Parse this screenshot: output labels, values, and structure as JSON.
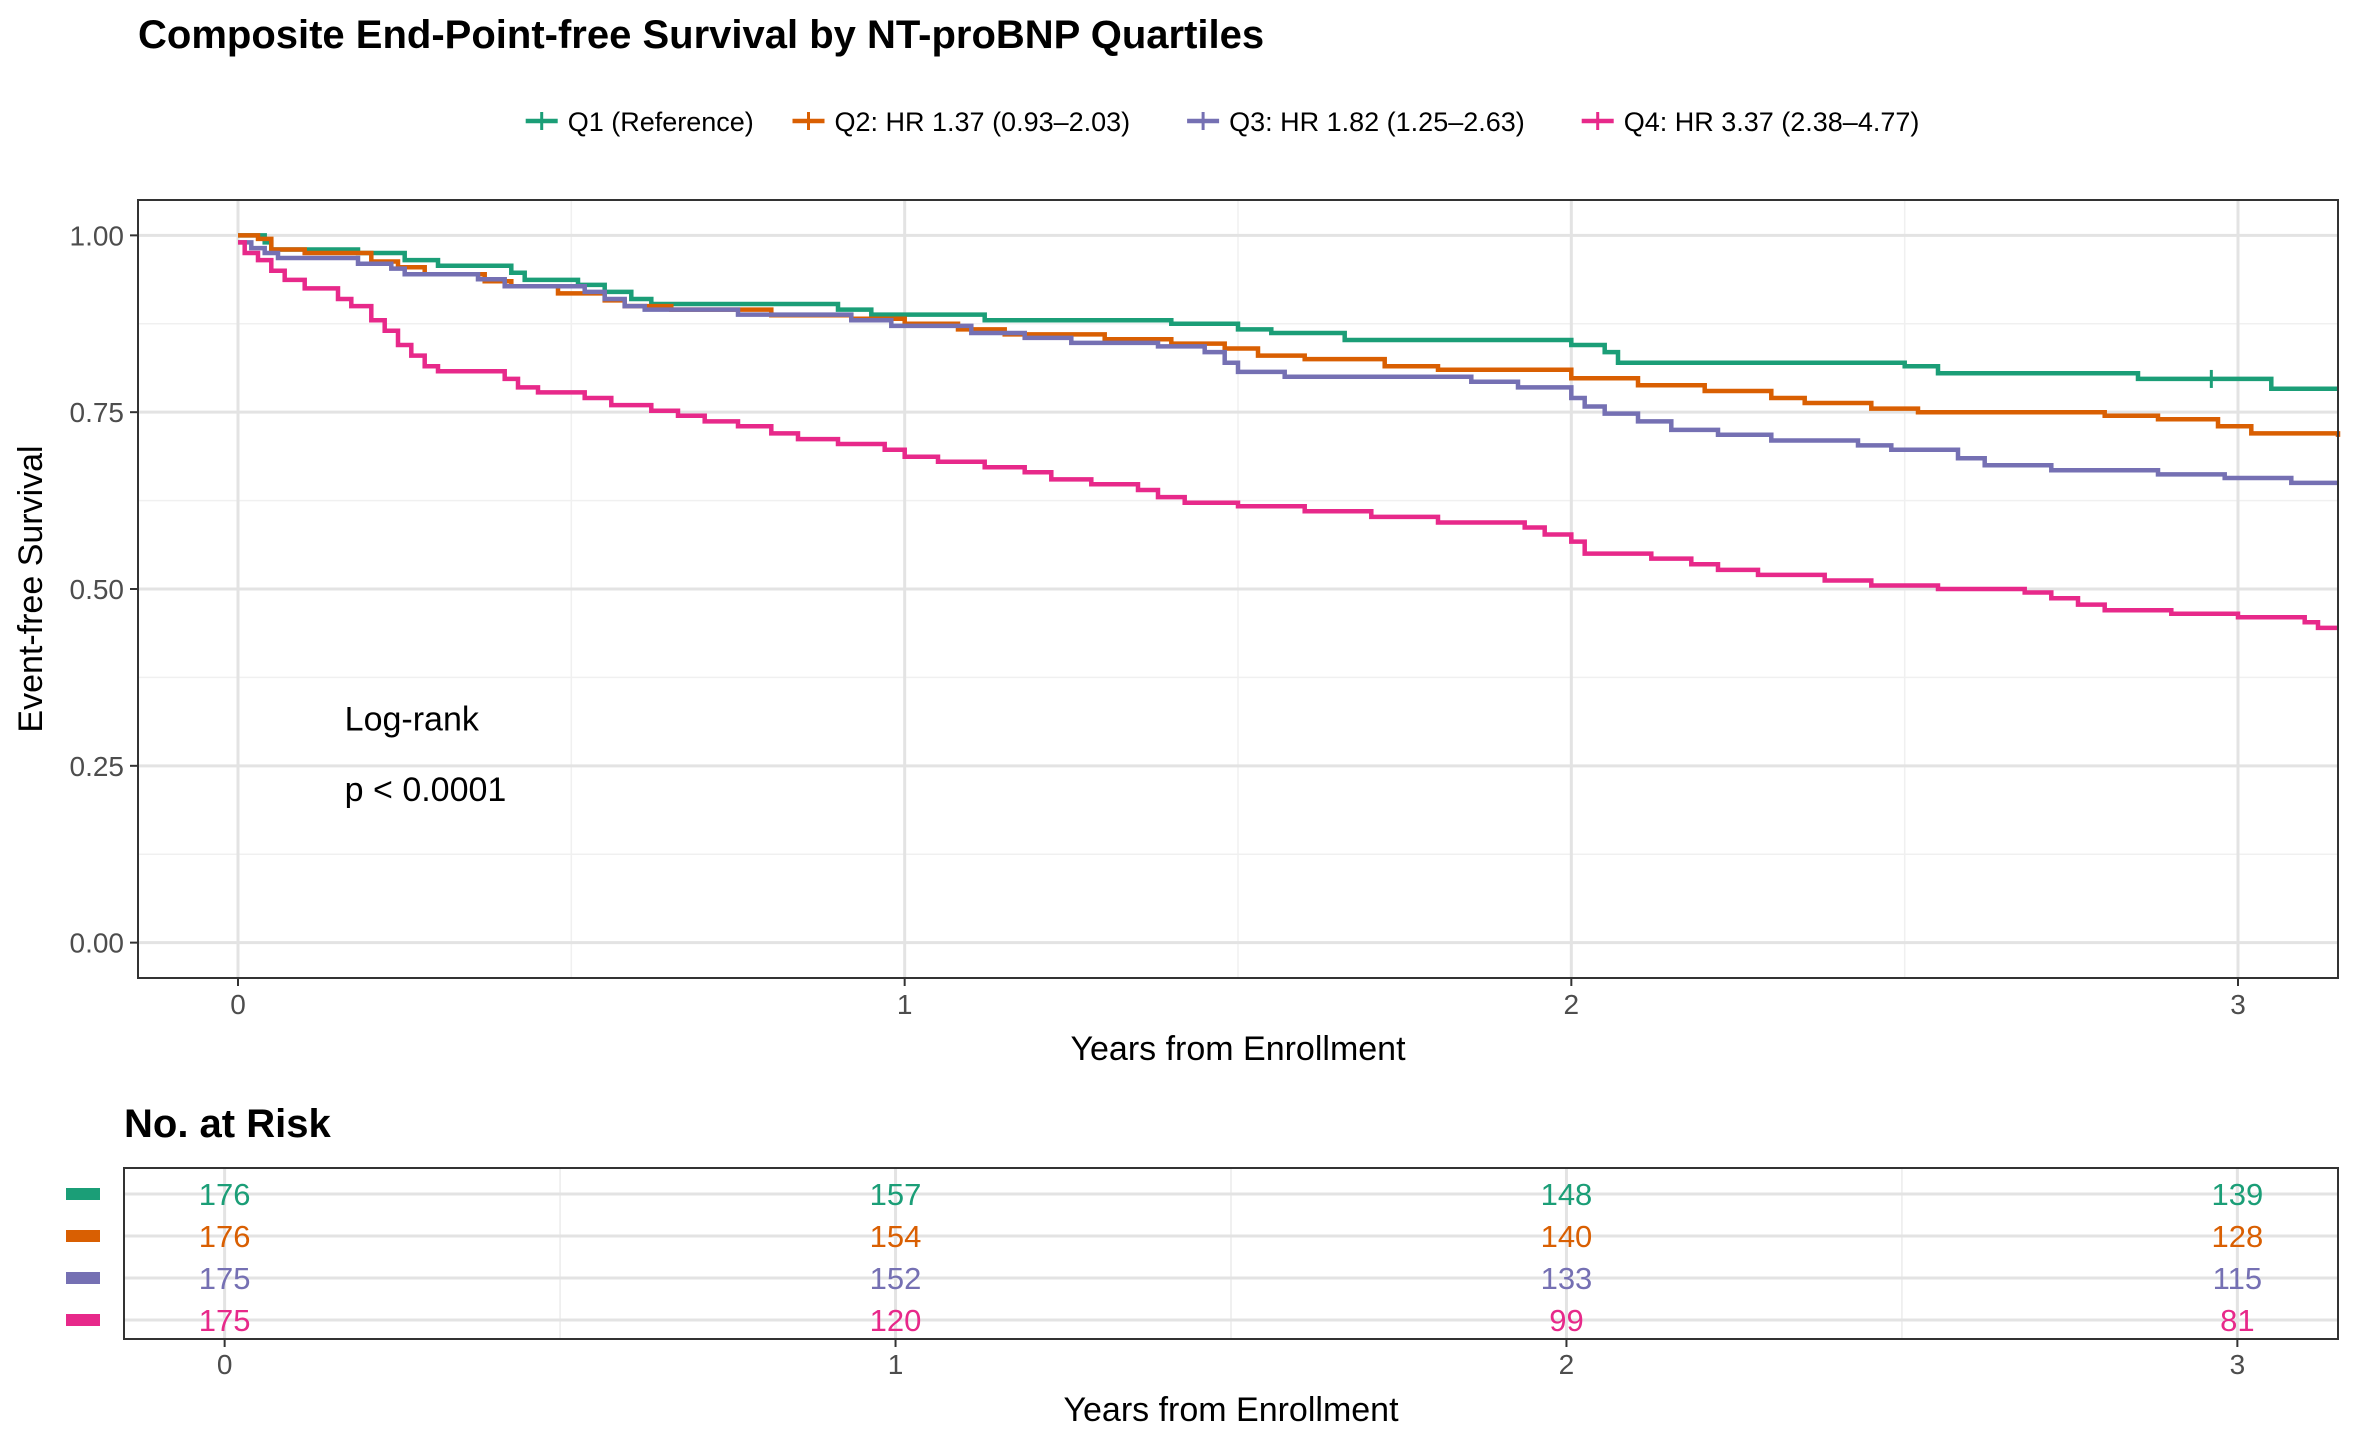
{
  "chart_data": {
    "type": "line",
    "title": "Composite End-Point-free Survival by NT-proBNP Quartiles",
    "xlabel": "Years from Enrollment",
    "ylabel": "Event-free Survival",
    "xlim": [
      -0.15,
      3.15
    ],
    "ylim": [
      -0.05,
      1.05
    ],
    "x_ticks": [
      0,
      1,
      2,
      3
    ],
    "x_tick_labels": [
      "0",
      "1",
      "2",
      "3"
    ],
    "y_ticks": [
      0,
      0.25,
      0.5,
      0.75,
      1.0
    ],
    "y_tick_labels": [
      "0.00",
      "0.25",
      "0.50",
      "0.75",
      "1.00"
    ],
    "grid": true,
    "legend_position": "top",
    "annotation": {
      "line1": "Log-rank",
      "line2": "p < 0.0001",
      "x": 0.16,
      "y1": 0.3,
      "y2": 0.2
    },
    "series": [
      {
        "name": "Q1 (Reference)",
        "color": "#1B9E77",
        "censor_marks": [
          [
            2.96,
            0.797
          ]
        ],
        "points": [
          [
            0,
            1.0
          ],
          [
            0.04,
            0.99
          ],
          [
            0.05,
            0.98
          ],
          [
            0.18,
            0.975
          ],
          [
            0.25,
            0.965
          ],
          [
            0.3,
            0.957
          ],
          [
            0.41,
            0.947
          ],
          [
            0.43,
            0.937
          ],
          [
            0.51,
            0.93
          ],
          [
            0.55,
            0.92
          ],
          [
            0.59,
            0.91
          ],
          [
            0.62,
            0.903
          ],
          [
            0.9,
            0.895
          ],
          [
            0.95,
            0.888
          ],
          [
            1.12,
            0.88
          ],
          [
            1.4,
            0.875
          ],
          [
            1.5,
            0.867
          ],
          [
            1.55,
            0.862
          ],
          [
            1.66,
            0.852
          ],
          [
            2.0,
            0.845
          ],
          [
            2.05,
            0.835
          ],
          [
            2.07,
            0.82
          ],
          [
            2.5,
            0.815
          ],
          [
            2.55,
            0.805
          ],
          [
            2.85,
            0.797
          ],
          [
            3.05,
            0.783
          ],
          [
            3.15,
            0.783
          ]
        ]
      },
      {
        "name": "Q2: HR 1.37 (0.93–2.03)",
        "color": "#D95F02",
        "censor_marks": [],
        "points": [
          [
            0,
            1.0
          ],
          [
            0.03,
            0.995
          ],
          [
            0.05,
            0.98
          ],
          [
            0.1,
            0.975
          ],
          [
            0.2,
            0.963
          ],
          [
            0.24,
            0.955
          ],
          [
            0.28,
            0.945
          ],
          [
            0.37,
            0.935
          ],
          [
            0.41,
            0.928
          ],
          [
            0.48,
            0.918
          ],
          [
            0.55,
            0.908
          ],
          [
            0.58,
            0.9
          ],
          [
            0.65,
            0.895
          ],
          [
            0.8,
            0.887
          ],
          [
            0.92,
            0.882
          ],
          [
            1.0,
            0.875
          ],
          [
            1.08,
            0.867
          ],
          [
            1.15,
            0.86
          ],
          [
            1.3,
            0.853
          ],
          [
            1.4,
            0.847
          ],
          [
            1.48,
            0.84
          ],
          [
            1.53,
            0.83
          ],
          [
            1.6,
            0.825
          ],
          [
            1.72,
            0.815
          ],
          [
            1.8,
            0.81
          ],
          [
            2.0,
            0.798
          ],
          [
            2.1,
            0.788
          ],
          [
            2.2,
            0.78
          ],
          [
            2.3,
            0.77
          ],
          [
            2.35,
            0.763
          ],
          [
            2.45,
            0.755
          ],
          [
            2.52,
            0.75
          ],
          [
            2.8,
            0.745
          ],
          [
            2.88,
            0.74
          ],
          [
            2.97,
            0.73
          ],
          [
            3.02,
            0.72
          ],
          [
            3.15,
            0.715
          ]
        ]
      },
      {
        "name": "Q3: HR 1.82 (1.25–2.63)",
        "color": "#7570B3",
        "censor_marks": [],
        "points": [
          [
            0,
            0.99
          ],
          [
            0.02,
            0.982
          ],
          [
            0.04,
            0.975
          ],
          [
            0.06,
            0.968
          ],
          [
            0.18,
            0.96
          ],
          [
            0.23,
            0.953
          ],
          [
            0.25,
            0.945
          ],
          [
            0.36,
            0.938
          ],
          [
            0.4,
            0.928
          ],
          [
            0.52,
            0.92
          ],
          [
            0.55,
            0.91
          ],
          [
            0.58,
            0.9
          ],
          [
            0.61,
            0.895
          ],
          [
            0.75,
            0.888
          ],
          [
            0.92,
            0.88
          ],
          [
            0.98,
            0.872
          ],
          [
            1.1,
            0.862
          ],
          [
            1.18,
            0.855
          ],
          [
            1.25,
            0.848
          ],
          [
            1.38,
            0.843
          ],
          [
            1.45,
            0.835
          ],
          [
            1.48,
            0.82
          ],
          [
            1.5,
            0.807
          ],
          [
            1.57,
            0.8
          ],
          [
            1.85,
            0.793
          ],
          [
            1.92,
            0.785
          ],
          [
            2.0,
            0.77
          ],
          [
            2.02,
            0.758
          ],
          [
            2.05,
            0.748
          ],
          [
            2.1,
            0.737
          ],
          [
            2.15,
            0.725
          ],
          [
            2.22,
            0.718
          ],
          [
            2.3,
            0.71
          ],
          [
            2.43,
            0.703
          ],
          [
            2.48,
            0.697
          ],
          [
            2.58,
            0.685
          ],
          [
            2.62,
            0.675
          ],
          [
            2.72,
            0.668
          ],
          [
            2.88,
            0.662
          ],
          [
            2.98,
            0.657
          ],
          [
            3.08,
            0.65
          ],
          [
            3.15,
            0.65
          ]
        ]
      },
      {
        "name": "Q4: HR 3.37 (2.38–4.77)",
        "color": "#E7298A",
        "censor_marks": [],
        "points": [
          [
            0,
            0.99
          ],
          [
            0.01,
            0.975
          ],
          [
            0.03,
            0.965
          ],
          [
            0.05,
            0.95
          ],
          [
            0.07,
            0.937
          ],
          [
            0.1,
            0.925
          ],
          [
            0.15,
            0.91
          ],
          [
            0.17,
            0.9
          ],
          [
            0.2,
            0.88
          ],
          [
            0.22,
            0.865
          ],
          [
            0.24,
            0.845
          ],
          [
            0.26,
            0.83
          ],
          [
            0.28,
            0.815
          ],
          [
            0.3,
            0.808
          ],
          [
            0.4,
            0.797
          ],
          [
            0.42,
            0.785
          ],
          [
            0.45,
            0.778
          ],
          [
            0.52,
            0.77
          ],
          [
            0.56,
            0.76
          ],
          [
            0.62,
            0.752
          ],
          [
            0.66,
            0.745
          ],
          [
            0.7,
            0.737
          ],
          [
            0.75,
            0.73
          ],
          [
            0.8,
            0.72
          ],
          [
            0.84,
            0.712
          ],
          [
            0.9,
            0.705
          ],
          [
            0.97,
            0.697
          ],
          [
            1.0,
            0.687
          ],
          [
            1.05,
            0.68
          ],
          [
            1.12,
            0.672
          ],
          [
            1.18,
            0.665
          ],
          [
            1.22,
            0.655
          ],
          [
            1.28,
            0.648
          ],
          [
            1.35,
            0.64
          ],
          [
            1.38,
            0.63
          ],
          [
            1.42,
            0.622
          ],
          [
            1.5,
            0.617
          ],
          [
            1.6,
            0.61
          ],
          [
            1.7,
            0.602
          ],
          [
            1.8,
            0.594
          ],
          [
            1.93,
            0.587
          ],
          [
            1.96,
            0.577
          ],
          [
            2.0,
            0.567
          ],
          [
            2.02,
            0.55
          ],
          [
            2.12,
            0.543
          ],
          [
            2.18,
            0.535
          ],
          [
            2.22,
            0.527
          ],
          [
            2.28,
            0.52
          ],
          [
            2.38,
            0.512
          ],
          [
            2.45,
            0.505
          ],
          [
            2.55,
            0.5
          ],
          [
            2.68,
            0.495
          ],
          [
            2.72,
            0.487
          ],
          [
            2.76,
            0.478
          ],
          [
            2.8,
            0.47
          ],
          [
            2.9,
            0.465
          ],
          [
            3.0,
            0.46
          ],
          [
            3.1,
            0.453
          ],
          [
            3.12,
            0.445
          ],
          [
            3.15,
            0.445
          ]
        ]
      }
    ],
    "risk_table": {
      "title": "No. at Risk",
      "xlabel": "Years from Enrollment",
      "x_ticks": [
        0,
        1,
        2,
        3
      ],
      "x_tick_labels": [
        "0",
        "1",
        "2",
        "3"
      ],
      "rows": [
        {
          "color": "#1B9E77",
          "values": [
            "176",
            "157",
            "148",
            "139"
          ]
        },
        {
          "color": "#D95F02",
          "values": [
            "176",
            "154",
            "140",
            "128"
          ]
        },
        {
          "color": "#7570B3",
          "values": [
            "175",
            "152",
            "133",
            "115"
          ]
        },
        {
          "color": "#E7298A",
          "values": [
            "175",
            "120",
            "99",
            "81"
          ]
        }
      ]
    }
  }
}
